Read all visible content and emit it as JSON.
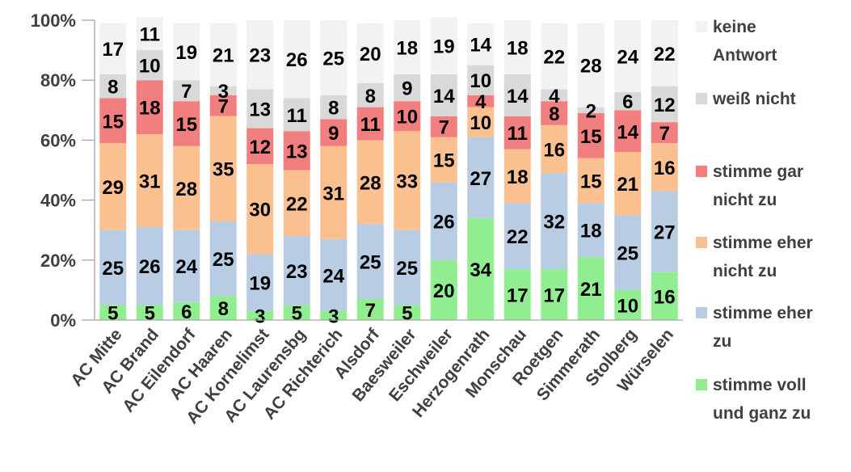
{
  "chart_data": {
    "type": "bar",
    "stacked": true,
    "normalized": true,
    "categories": [
      "AC Mitte",
      "AC Brand",
      "AC Eilendorf",
      "AC Haaren",
      "AC Kornelimst",
      "AC Laurensbg",
      "AC Richterich",
      "Alsdorf",
      "Baesweiler",
      "Eschweiler",
      "Herzogenrath",
      "Monschau",
      "Roetgen",
      "Simmerath",
      "Stolberg",
      "Würselen"
    ],
    "series": [
      {
        "name": "stimme voll und ganz zu",
        "color": "#90ee90",
        "values": [
          5,
          5,
          6,
          8,
          3,
          5,
          3,
          7,
          5,
          20,
          34,
          17,
          17,
          21,
          10,
          16
        ]
      },
      {
        "name": "stimme eher zu",
        "color": "#b8cce4",
        "values": [
          25,
          26,
          24,
          25,
          19,
          23,
          24,
          25,
          25,
          26,
          27,
          22,
          32,
          18,
          25,
          27
        ]
      },
      {
        "name": "stimme eher nicht zu",
        "color": "#fac090",
        "values": [
          29,
          31,
          28,
          35,
          30,
          22,
          31,
          28,
          33,
          15,
          10,
          18,
          16,
          15,
          21,
          16
        ]
      },
      {
        "name": "stimme gar nicht zu",
        "color": "#f27f7f",
        "values": [
          15,
          18,
          15,
          7,
          12,
          13,
          9,
          11,
          10,
          7,
          4,
          11,
          8,
          15,
          14,
          7
        ]
      },
      {
        "name": "weiß nicht",
        "color": "#d9d9d9",
        "values": [
          8,
          10,
          7,
          3,
          13,
          11,
          8,
          8,
          9,
          14,
          10,
          14,
          4,
          2,
          6,
          12
        ]
      },
      {
        "name": "keine Antwort",
        "color": "#f2f2f2",
        "values": [
          17,
          11,
          19,
          21,
          23,
          26,
          25,
          20,
          18,
          19,
          14,
          18,
          22,
          28,
          24,
          22
        ]
      }
    ],
    "y_ticks": [
      "0%",
      "20%",
      "40%",
      "60%",
      "80%",
      "100%"
    ],
    "ylim": [
      0,
      100
    ],
    "legend_position": "right",
    "legend_labels": [
      {
        "lines": [
          "keine",
          "Antwort"
        ]
      },
      {
        "lines": [
          "weiß nicht"
        ]
      },
      {
        "lines": [
          "stimme gar",
          "nicht zu"
        ]
      },
      {
        "lines": [
          "stimme eher",
          "nicht zu"
        ]
      },
      {
        "lines": [
          "stimme eher",
          "zu"
        ]
      },
      {
        "lines": [
          "stimme voll",
          "und ganz zu"
        ]
      }
    ]
  }
}
